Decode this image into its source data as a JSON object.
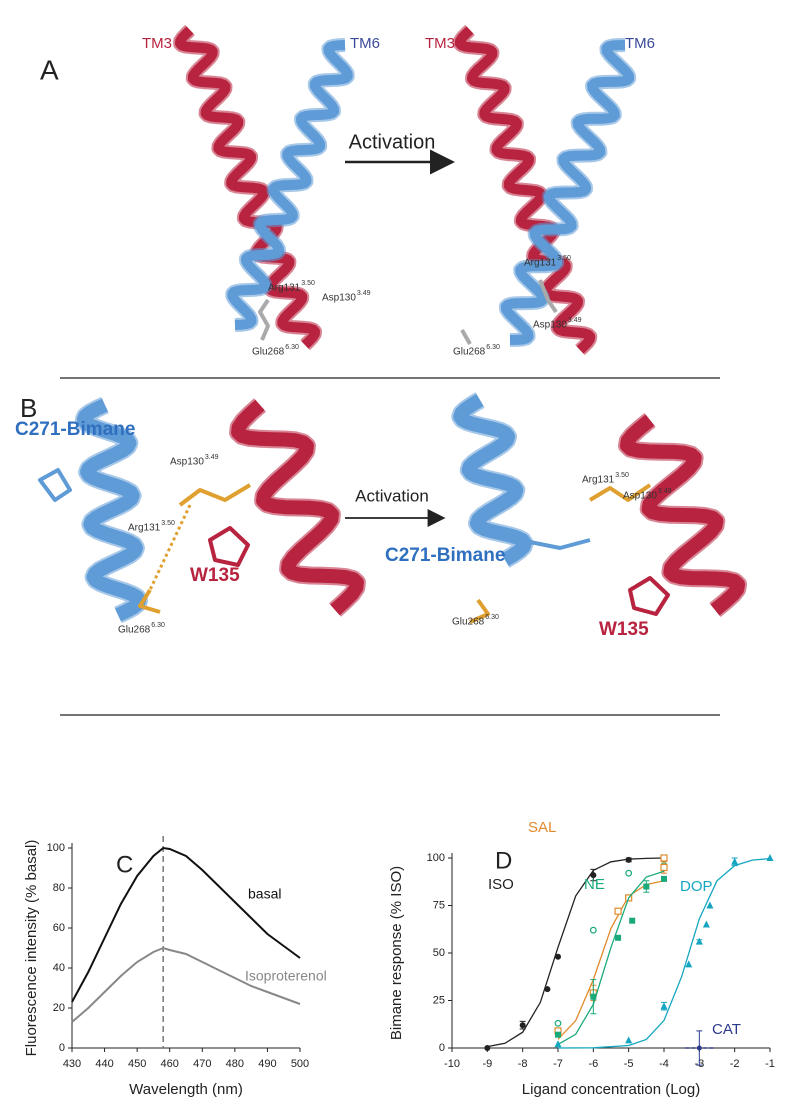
{
  "panel_a": {
    "letter": "A",
    "arrow_label": "Activation",
    "labels": [
      {
        "text": "TM3"
      },
      {
        "text": "TM6"
      },
      {
        "text": "TM3"
      },
      {
        "text": "TM6"
      },
      {
        "text": "Arg131",
        "sup": "3.50"
      },
      {
        "text": "Asp130",
        "sup": "3.49"
      },
      {
        "text": "Glu268",
        "sup": "6.30"
      },
      {
        "text": "Arg131",
        "sup": "3.50"
      },
      {
        "text": "Asp130",
        "sup": "3.49"
      },
      {
        "text": "Glu268",
        "sup": "6.30"
      }
    ]
  },
  "panel_b": {
    "letter": "B",
    "arrow_label": "Activation",
    "labels": [
      {
        "text": "C271-Bimane"
      },
      {
        "text": "Asp130",
        "sup": "3.49"
      },
      {
        "text": "Arg131",
        "sup": "3.50"
      },
      {
        "text": "W135"
      },
      {
        "text": "Glu268",
        "sup": "6.30"
      },
      {
        "text": "Arg131",
        "sup": "3.50"
      },
      {
        "text": "Asp130",
        "sup": "3.49"
      },
      {
        "text": "C271-Bimane"
      },
      {
        "text": "Glu268",
        "sup": "6.30"
      },
      {
        "text": "W135"
      }
    ]
  },
  "chart_data": [
    {
      "type": "line",
      "letter": "C",
      "x_label": "Wavelength (nm)",
      "y_label": "Fluorescence intensity (% basal)",
      "xlim": [
        430,
        500
      ],
      "xticks": [
        430,
        440,
        450,
        460,
        470,
        480,
        490,
        500
      ],
      "ylim": [
        0,
        100
      ],
      "yticks": [
        0,
        20,
        40,
        60,
        80,
        100
      ],
      "marker_x": 458,
      "series": [
        {
          "name": "basal",
          "color": "#111111",
          "x": [
            430,
            435,
            440,
            445,
            450,
            455,
            458,
            460,
            465,
            470,
            475,
            480,
            485,
            490,
            495,
            500
          ],
          "values": [
            23,
            38,
            55,
            72,
            86,
            96,
            100,
            99.5,
            96,
            89,
            81,
            73,
            65,
            57,
            51,
            45
          ]
        },
        {
          "name": "Isoproterenol",
          "color": "#888888",
          "x": [
            430,
            435,
            440,
            445,
            450,
            455,
            458,
            460,
            465,
            470,
            475,
            480,
            485,
            490,
            495,
            500
          ],
          "values": [
            13,
            20,
            28,
            36,
            43,
            48,
            50,
            49,
            47,
            43,
            39,
            35,
            31,
            28,
            25,
            22
          ]
        }
      ]
    },
    {
      "type": "scatter",
      "letter": "D",
      "x_label": "Ligand concentration (Log)",
      "y_label": "Bimane response (% ISO)",
      "xlim": [
        -10,
        -1
      ],
      "xticks": [
        -10,
        -9,
        -8,
        -7,
        -6,
        -5,
        -4,
        -3,
        -2,
        -1
      ],
      "ylim": [
        0,
        100
      ],
      "yticks": [
        0,
        25,
        50,
        75,
        100
      ],
      "series": [
        {
          "name": "ISO",
          "color": "#222222",
          "marker": "circle",
          "x": [
            -9,
            -8,
            -7.3,
            -7,
            -6,
            -5,
            -4
          ],
          "values": [
            0,
            12,
            31,
            48,
            91,
            99,
            100
          ],
          "errors": [
            0,
            2,
            0,
            0,
            3,
            1,
            0
          ],
          "fit": {
            "x": [
              -9,
              -8.5,
              -8,
              -7.5,
              -7,
              -6.5,
              -6,
              -5.5,
              -5,
              -4.5,
              -4
            ],
            "y": [
              0.7,
              2.5,
              8.3,
              24,
              53,
              80,
              93.5,
              98,
              99.4,
              99.8,
              100
            ]
          }
        },
        {
          "name": null,
          "color": "#1aaa7a",
          "marker": "open-circle",
          "x": [
            -7,
            -6,
            -5,
            -4
          ],
          "values": [
            13,
            62,
            92,
            96
          ]
        },
        {
          "name": "SAL",
          "color": "#e08a2c",
          "marker": "open-square",
          "x": [
            -7,
            -6,
            -5.3,
            -5,
            -4,
            -4
          ],
          "values": [
            9,
            29,
            72,
            79,
            95,
            100
          ],
          "errors": [
            0,
            4,
            0,
            0,
            3,
            0
          ],
          "fit": {
            "x": [
              -7,
              -6.5,
              -6,
              -5.5,
              -5,
              -4.5,
              -4
            ],
            "y": [
              4.6,
              14.4,
              36,
              63,
              80,
              86,
              88
            ]
          }
        },
        {
          "name": "NE",
          "color": "#1aaa7a",
          "marker": "square",
          "x": [
            -7,
            -6,
            -5.3,
            -4.9,
            -4.5,
            -4
          ],
          "values": [
            7,
            27,
            58,
            67,
            85,
            89
          ],
          "errors": [
            0,
            9,
            0,
            0,
            3,
            0
          ],
          "fit": {
            "x": [
              -7,
              -6.5,
              -6,
              -5.5,
              -5,
              -4.5,
              -4
            ],
            "y": [
              1.9,
              7.2,
              23,
              53,
              79,
              90,
              93
            ]
          }
        },
        {
          "name": "DOP",
          "color": "#14a6c0",
          "marker": "triangle",
          "x": [
            -7,
            -5,
            -4,
            -3.3,
            -3,
            -2.8,
            -2.7,
            -2,
            -1
          ],
          "values": [
            2,
            4,
            22,
            44,
            56,
            65,
            75,
            98,
            100
          ],
          "errors": [
            0,
            0,
            2,
            0,
            1,
            0,
            0,
            2,
            0
          ],
          "fit": {
            "x": [
              -7,
              -6,
              -5,
              -4.5,
              -4,
              -3.5,
              -3,
              -2.5,
              -2,
              -1.5,
              -1
            ],
            "y": [
              0,
              0.1,
              1.3,
              4.5,
              14.5,
              37.6,
              68,
              88,
              96,
              98.9,
              99.7
            ]
          }
        },
        {
          "name": "CAT",
          "color": "#2c3a8c",
          "marker": "dot",
          "x": [
            -3
          ],
          "values": [
            0
          ],
          "errors": [
            9
          ]
        }
      ]
    }
  ]
}
